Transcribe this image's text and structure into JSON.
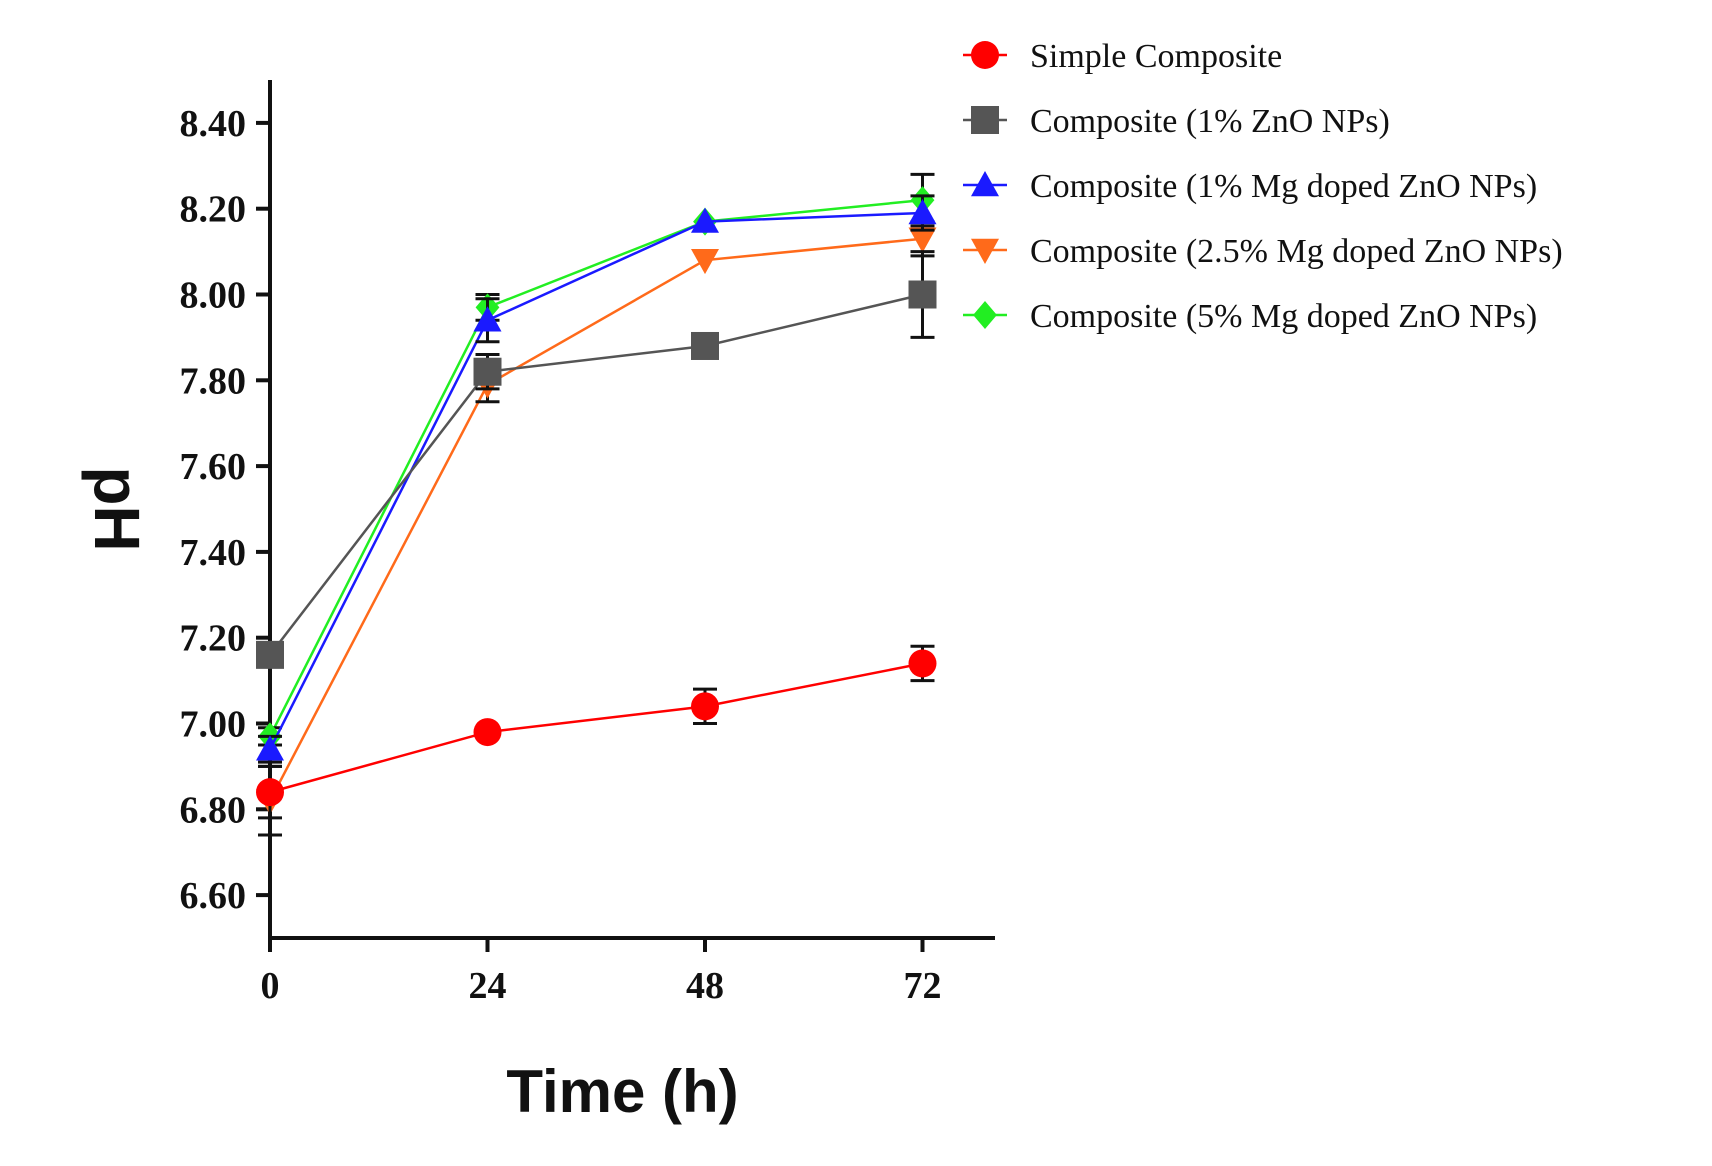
{
  "chart_data": {
    "type": "line",
    "title": "",
    "xlabel": "Time (h)",
    "ylabel": "pH",
    "x": [
      0,
      24,
      48,
      72
    ],
    "xticks": [
      "0",
      "24",
      "48",
      "72"
    ],
    "yticks": [
      "6.60",
      "6.80",
      "7.00",
      "7.20",
      "7.40",
      "7.60",
      "7.80",
      "8.00",
      "8.20",
      "8.40"
    ],
    "xlim": [
      0,
      80
    ],
    "ylim": [
      6.5,
      8.5
    ],
    "grid": false,
    "legend_position": "top-right",
    "series": [
      {
        "name": "Simple Composite",
        "marker": "circle",
        "color": "#ff0000",
        "values": [
          6.84,
          6.98,
          7.04,
          7.14
        ],
        "errors": [
          0.06,
          0.0,
          0.04,
          0.04
        ]
      },
      {
        "name": "Composite (1% ZnO NPs)",
        "marker": "square",
        "color": "#555555",
        "values": [
          7.16,
          7.82,
          7.88,
          8.0
        ],
        "errors": [
          0.0,
          0.04,
          0.0,
          0.1
        ]
      },
      {
        "name": "Composite (1% Mg doped ZnO NPs)",
        "marker": "triangle-up",
        "color": "#1a1aff",
        "values": [
          6.94,
          7.94,
          8.17,
          8.19
        ],
        "errors": [
          0.03,
          0.05,
          0.0,
          0.04
        ]
      },
      {
        "name": "Composite (2.5% Mg doped ZnO NPs)",
        "marker": "triangle-down",
        "color": "#ff6a1a",
        "values": [
          6.82,
          7.79,
          8.08,
          8.13
        ],
        "errors": [
          0.08,
          0.04,
          0.0,
          0.04
        ]
      },
      {
        "name": "Composite (5% Mg doped ZnO NPs)",
        "marker": "diamond",
        "color": "#22ee22",
        "values": [
          6.97,
          7.97,
          8.17,
          8.22
        ],
        "errors": [
          0.02,
          0.03,
          0.0,
          0.06
        ]
      }
    ]
  }
}
